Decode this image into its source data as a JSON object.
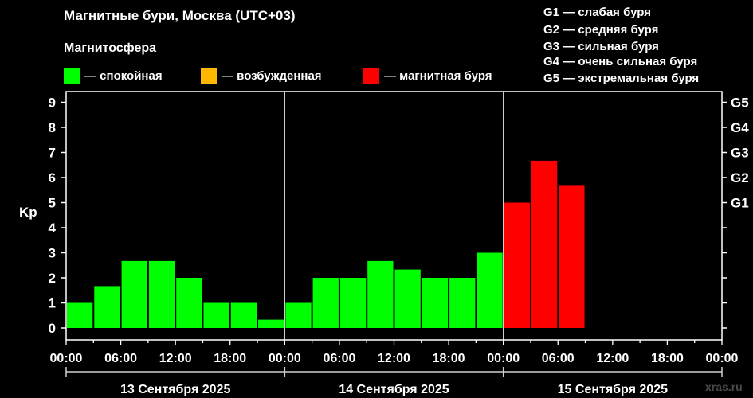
{
  "header": {
    "title": "Магнитные бури, Москва (UTC+03)",
    "subtitle": "Магнитосфера"
  },
  "legend": [
    {
      "label": "— спокойная",
      "color": "#00ff00"
    },
    {
      "label": "— возбужденная",
      "color": "#ffb800"
    },
    {
      "label": "— магнитная буря",
      "color": "#ff0000"
    }
  ],
  "storm_scale": [
    "G1 — слабая буря",
    "G2 — средняя буря",
    "G3 — сильная буря",
    "G4 — очень сильная буря",
    "G5 — экстремальная буря"
  ],
  "watermark": "xras.ru",
  "chart_data": {
    "type": "bar",
    "ylabel": "Kp",
    "ylim": [
      0,
      9
    ],
    "y_ticks": [
      "0",
      "1",
      "2",
      "3",
      "4",
      "5",
      "6",
      "7",
      "8",
      "9"
    ],
    "y2_ticks": [
      {
        "label": "G1",
        "kp": 5
      },
      {
        "label": "G2",
        "kp": 6
      },
      {
        "label": "G3",
        "kp": 7
      },
      {
        "label": "G4",
        "kp": 8
      },
      {
        "label": "G5",
        "kp": 9
      }
    ],
    "x_tick_labels": [
      "00:00",
      "06:00",
      "12:00",
      "18:00",
      "00:00",
      "06:00",
      "12:00",
      "18:00",
      "00:00",
      "06:00",
      "12:00",
      "18:00",
      "00:00"
    ],
    "days": [
      "13 Сентября 2025",
      "14 Сентября 2025",
      "15 Сентября 2025"
    ],
    "slots_per_day": 8,
    "colors": {
      "quiet": "#00ff00",
      "active": "#ffb800",
      "storm": "#ff0000"
    },
    "series": [
      {
        "day": "13 Сентября 2025",
        "values": [
          1.0,
          1.67,
          2.67,
          2.67,
          2.0,
          1.0,
          1.0,
          0.33
        ],
        "status": [
          "quiet",
          "quiet",
          "quiet",
          "quiet",
          "quiet",
          "quiet",
          "quiet",
          "quiet"
        ]
      },
      {
        "day": "14 Сентября 2025",
        "values": [
          1.0,
          2.0,
          2.0,
          2.67,
          2.33,
          2.0,
          2.0,
          3.0
        ],
        "status": [
          "quiet",
          "quiet",
          "quiet",
          "quiet",
          "quiet",
          "quiet",
          "quiet",
          "quiet"
        ]
      },
      {
        "day": "15 Сентября 2025",
        "values": [
          5.0,
          6.67,
          5.67
        ],
        "status": [
          "storm",
          "storm",
          "storm"
        ]
      }
    ]
  }
}
